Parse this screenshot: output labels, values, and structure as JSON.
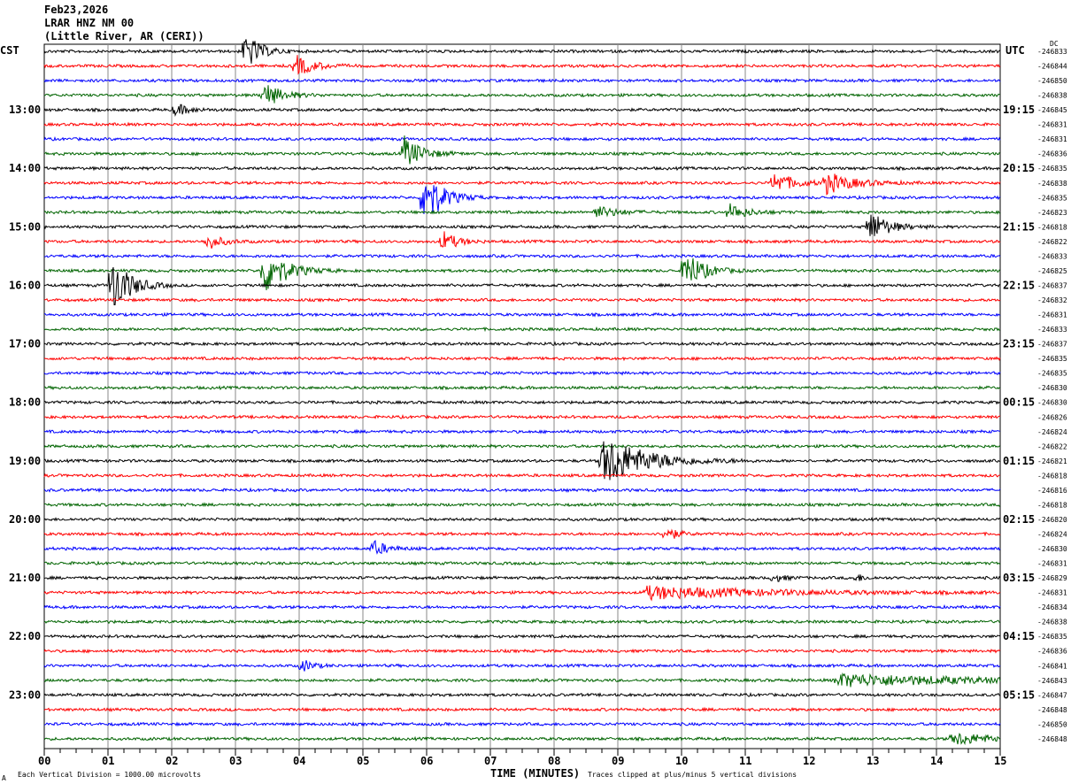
{
  "header": {
    "date": "Feb23,2026",
    "station": "LRAR HNZ NM 00",
    "location": "(Little River, AR (CERI))"
  },
  "chart_data": {
    "type": "line",
    "title": "",
    "xlabel": "TIME (MINUTES)",
    "xlim": [
      0,
      15
    ],
    "x_ticks": [
      "00",
      "01",
      "02",
      "03",
      "04",
      "05",
      "06",
      "07",
      "08",
      "09",
      "10",
      "11",
      "12",
      "13",
      "14",
      "15"
    ],
    "left_timezone": "CST",
    "right_timezone": "UTC",
    "dc_label": "DC",
    "left_hour_labels": [
      "13:00",
      "14:00",
      "15:00",
      "16:00",
      "17:00",
      "18:00",
      "19:00",
      "20:00",
      "21:00",
      "22:00",
      "23:00"
    ],
    "right_hour_labels": [
      "19:15",
      "20:15",
      "21:15",
      "22:15",
      "23:15",
      "00:15",
      "01:15",
      "02:15",
      "03:15",
      "04:15",
      "05:15"
    ],
    "trace_colors": [
      "#000000",
      "#ff0000",
      "#0000ff",
      "#006400"
    ],
    "dc_offsets": [
      "-246833",
      "-246844",
      "-246850",
      "-246838",
      "-246845",
      "-246831",
      "-246831",
      "-246836",
      "-246835",
      "-246838",
      "-246835",
      "-246823",
      "-246818",
      "-246822",
      "-246833",
      "-246825",
      "-246837",
      "-246832",
      "-246831",
      "-246833",
      "-246837",
      "-246835",
      "-246835",
      "-246830",
      "-246830",
      "-246826",
      "-246824",
      "-246822",
      "-246821",
      "-246818",
      "-246816",
      "-246818",
      "-246820",
      "-246824",
      "-246830",
      "-246831",
      "-246829",
      "-246831",
      "-246834",
      "-246838",
      "-246835",
      "-246836",
      "-246841",
      "-246843",
      "-246847",
      "-246848",
      "-246850",
      "-246848"
    ],
    "events": [
      {
        "trace": 0,
        "minute": 3.2,
        "amplitude": 1.0,
        "duration": 0.4
      },
      {
        "trace": 1,
        "minute": 4.0,
        "amplitude": 0.5,
        "duration": 0.5
      },
      {
        "trace": 3,
        "minute": 3.5,
        "amplitude": 0.6,
        "duration": 0.5
      },
      {
        "trace": 4,
        "minute": 2.1,
        "amplitude": 0.3,
        "duration": 0.4
      },
      {
        "trace": 7,
        "minute": 5.7,
        "amplitude": 0.8,
        "duration": 0.5
      },
      {
        "trace": 9,
        "minute": 11.5,
        "amplitude": 0.5,
        "duration": 0.6
      },
      {
        "trace": 9,
        "minute": 12.3,
        "amplitude": 0.5,
        "duration": 0.8
      },
      {
        "trace": 10,
        "minute": 6.0,
        "amplitude": 1.5,
        "duration": 0.5
      },
      {
        "trace": 11,
        "minute": 8.7,
        "amplitude": 0.3,
        "duration": 0.6
      },
      {
        "trace": 11,
        "minute": 10.8,
        "amplitude": 0.4,
        "duration": 0.5
      },
      {
        "trace": 12,
        "minute": 13.0,
        "amplitude": 0.8,
        "duration": 0.5
      },
      {
        "trace": 13,
        "minute": 2.6,
        "amplitude": 0.4,
        "duration": 0.4
      },
      {
        "trace": 13,
        "minute": 6.3,
        "amplitude": 0.5,
        "duration": 0.4
      },
      {
        "trace": 15,
        "minute": 3.5,
        "amplitude": 1.2,
        "duration": 0.6
      },
      {
        "trace": 15,
        "minute": 10.1,
        "amplitude": 1.0,
        "duration": 0.5
      },
      {
        "trace": 16,
        "minute": 1.1,
        "amplitude": 1.6,
        "duration": 0.5
      },
      {
        "trace": 28,
        "minute": 8.8,
        "amplitude": 1.3,
        "duration": 1.2
      },
      {
        "trace": 33,
        "minute": 9.8,
        "amplitude": 0.4,
        "duration": 0.3
      },
      {
        "trace": 34,
        "minute": 5.2,
        "amplitude": 0.4,
        "duration": 0.4
      },
      {
        "trace": 36,
        "minute": 11.5,
        "amplitude": 0.2,
        "duration": 0.3
      },
      {
        "trace": 36,
        "minute": 12.8,
        "amplitude": 0.2,
        "duration": 0.2
      },
      {
        "trace": 37,
        "minute": 9.5,
        "amplitude": 0.3,
        "duration": 3.5
      },
      {
        "trace": 42,
        "minute": 4.1,
        "amplitude": 0.3,
        "duration": 0.3
      },
      {
        "trace": 43,
        "minute": 12.5,
        "amplitude": 0.3,
        "duration": 4.0
      },
      {
        "trace": 47,
        "minute": 14.3,
        "amplitude": 0.3,
        "duration": 1.2
      }
    ]
  },
  "footer": {
    "scale_note": "Each Vertical Division = 1000.00 microvolts",
    "clip_note": "Traces clipped at plus/minus 5 vertical divisions",
    "corner_mark": "A"
  }
}
